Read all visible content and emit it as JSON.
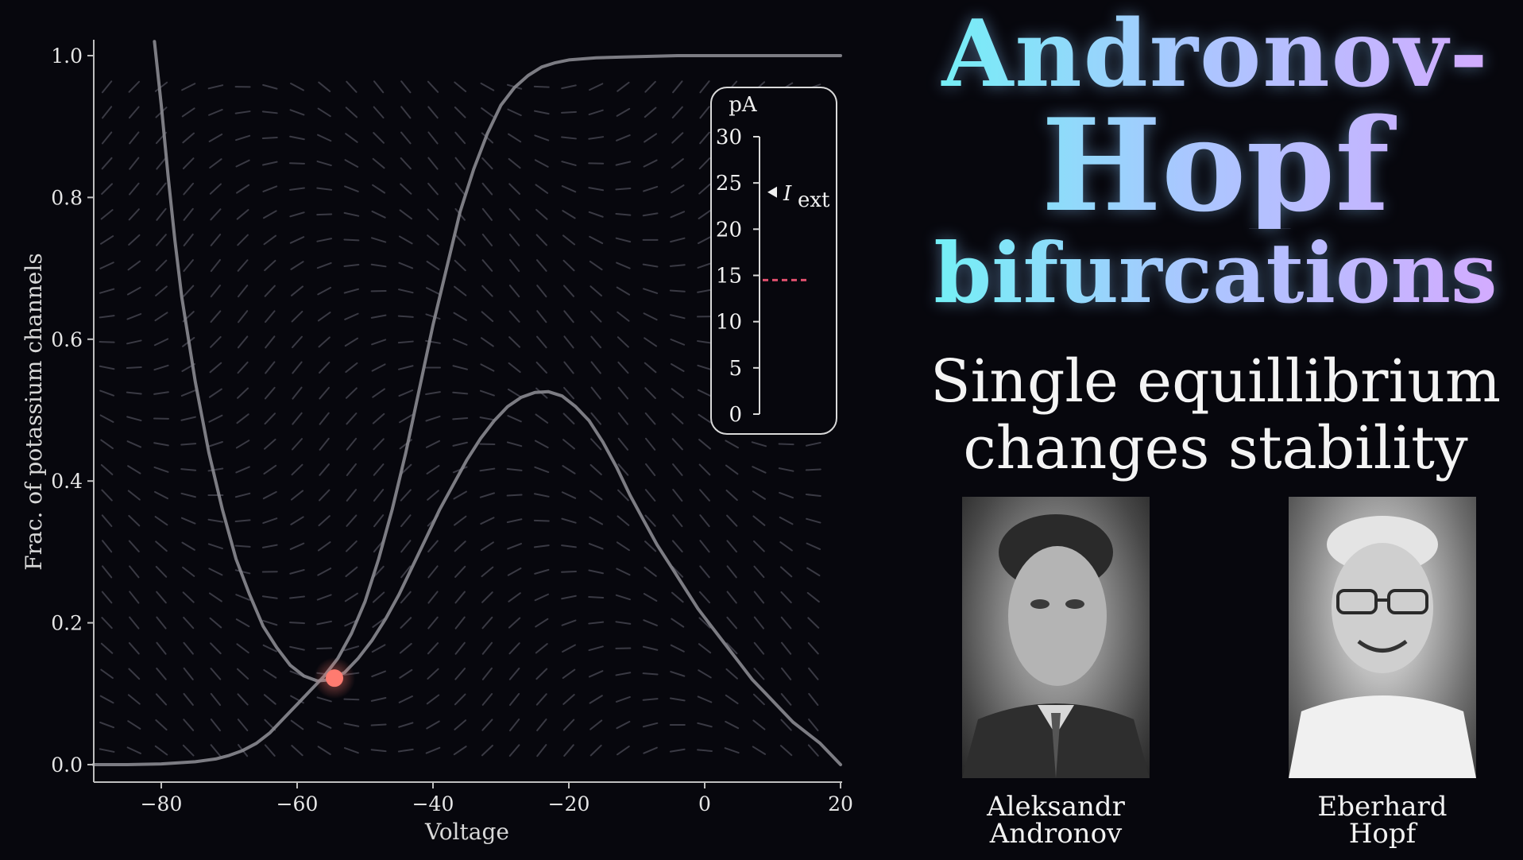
{
  "title": {
    "line1": "Andronov-",
    "line2": "Hopf",
    "line3": "bifurcations"
  },
  "subtitle": {
    "line1": "Single equillibrium",
    "line2": "changes stability"
  },
  "portraits": [
    {
      "name_line1": "Aleksandr",
      "name_line2": "Andronov"
    },
    {
      "name_line1": "Eberhard",
      "name_line2": "Hopf"
    }
  ],
  "gauge": {
    "unit": "pA",
    "ticks": [
      0,
      5,
      10,
      15,
      20,
      25,
      30
    ],
    "marker_value": 24,
    "marker_label": "I",
    "marker_subscript": "ext",
    "current_value": 14.5,
    "current_color": "#e0506e"
  },
  "chart_data": {
    "type": "line",
    "xlabel": "Voltage",
    "ylabel": "Frac. of potassium channels",
    "xlim": [
      -90,
      20
    ],
    "ylim": [
      0,
      1.0
    ],
    "xticks": [
      -80,
      -60,
      -40,
      -20,
      0,
      20
    ],
    "yticks": [
      0.0,
      0.2,
      0.4,
      0.6,
      0.8,
      1.0
    ],
    "grid": false,
    "series": [
      {
        "color": "#8a8a90",
        "x": [
          -81,
          -80,
          -79,
          -78,
          -77,
          -75,
          -73,
          -71,
          -69,
          -67,
          -65,
          -63,
          -61,
          -59,
          -57,
          -55,
          -53,
          -51,
          -49,
          -47,
          -45,
          -43,
          -41,
          -39,
          -37,
          -35,
          -33,
          -31,
          -29,
          -27,
          -25,
          -23,
          -21,
          -19,
          -17,
          -15,
          -13,
          -11,
          -9,
          -7,
          -5,
          -3,
          -1,
          1,
          3,
          5,
          7,
          9,
          11,
          13,
          15,
          17,
          19,
          20
        ],
        "y": [
          1.02,
          0.93,
          0.83,
          0.74,
          0.66,
          0.54,
          0.44,
          0.36,
          0.29,
          0.24,
          0.195,
          0.165,
          0.14,
          0.125,
          0.118,
          0.12,
          0.13,
          0.15,
          0.175,
          0.205,
          0.24,
          0.28,
          0.32,
          0.36,
          0.395,
          0.43,
          0.46,
          0.485,
          0.505,
          0.518,
          0.525,
          0.526,
          0.52,
          0.505,
          0.485,
          0.455,
          0.42,
          0.38,
          0.345,
          0.31,
          0.28,
          0.25,
          0.22,
          0.195,
          0.17,
          0.145,
          0.12,
          0.1,
          0.08,
          0.06,
          0.045,
          0.03,
          0.01,
          0.0
        ]
      },
      {
        "color": "#8a8a90",
        "x": [
          -90,
          -85,
          -80,
          -75,
          -72,
          -70,
          -68,
          -66,
          -64,
          -62,
          -60,
          -58,
          -56,
          -54,
          -52,
          -50,
          -48,
          -46,
          -44,
          -42,
          -40,
          -38,
          -36,
          -34,
          -32,
          -30,
          -28,
          -26,
          -24,
          -22,
          -20,
          -16,
          -12,
          -8,
          -4,
          0,
          5,
          10,
          15,
          20
        ],
        "y": [
          0.0,
          0.0,
          0.001,
          0.004,
          0.008,
          0.013,
          0.02,
          0.03,
          0.045,
          0.065,
          0.085,
          0.105,
          0.125,
          0.15,
          0.185,
          0.23,
          0.29,
          0.36,
          0.44,
          0.53,
          0.62,
          0.7,
          0.78,
          0.84,
          0.89,
          0.93,
          0.955,
          0.972,
          0.984,
          0.99,
          0.994,
          0.997,
          0.998,
          0.999,
          1.0,
          1.0,
          1.0,
          1.0,
          1.0,
          1.0
        ]
      }
    ],
    "equilibrium": {
      "x": -54.5,
      "y": 0.122,
      "color": "#ff7b70"
    }
  }
}
